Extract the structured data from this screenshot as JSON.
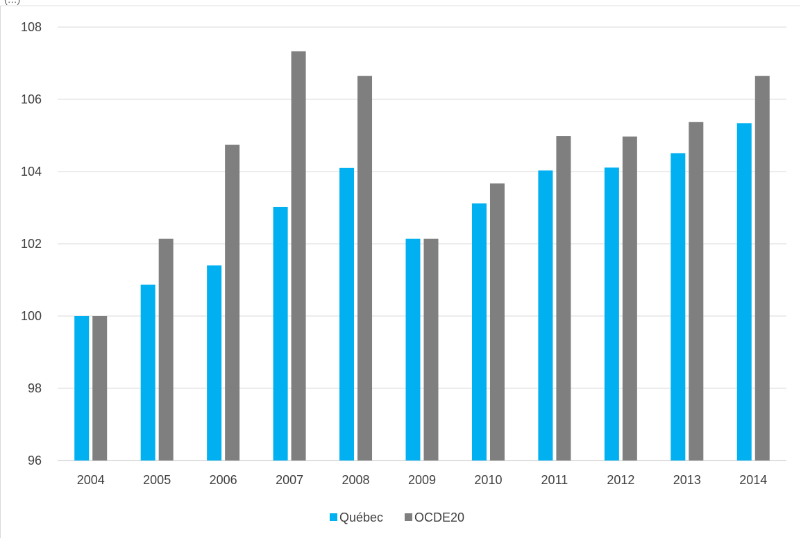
{
  "header": {
    "note": "(…)"
  },
  "chart_data": {
    "type": "bar",
    "categories": [
      "2004",
      "2005",
      "2006",
      "2007",
      "2008",
      "2009",
      "2010",
      "2011",
      "2012",
      "2013",
      "2014"
    ],
    "series": [
      {
        "name": "Québec",
        "color": "#00b0f0",
        "values": [
          100.0,
          100.87,
          101.4,
          103.02,
          104.1,
          102.14,
          103.12,
          104.03,
          104.11,
          104.51,
          105.34
        ]
      },
      {
        "name": "OCDE20",
        "color": "#7f7f7f",
        "values": [
          100.0,
          102.14,
          104.74,
          107.33,
          106.65,
          102.14,
          103.67,
          104.98,
          104.97,
          105.37,
          106.65
        ]
      }
    ],
    "yticks": [
      96,
      98,
      100,
      102,
      104,
      106,
      108
    ],
    "ylim": [
      96,
      108
    ],
    "grid": true,
    "legend": "bottom-center",
    "title": "",
    "xlabel": "",
    "ylabel": ""
  }
}
